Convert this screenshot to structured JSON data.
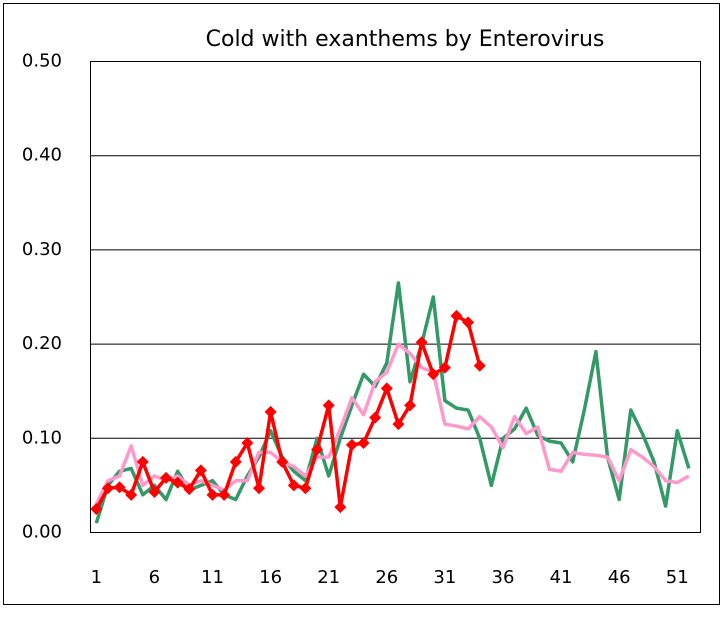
{
  "chart_data": {
    "type": "line",
    "title": "Cold with exanthems by Enterovirus",
    "x": [
      1,
      2,
      3,
      4,
      5,
      6,
      7,
      8,
      9,
      10,
      11,
      12,
      13,
      14,
      15,
      16,
      17,
      18,
      19,
      20,
      21,
      22,
      23,
      24,
      25,
      26,
      27,
      28,
      29,
      30,
      31,
      32,
      33,
      34,
      35,
      36,
      37,
      38,
      39,
      40,
      41,
      42,
      43,
      44,
      45,
      46,
      47,
      48,
      49,
      50,
      51,
      52
    ],
    "series": [
      {
        "color": "#339966",
        "marker": "none",
        "values": [
          0.01,
          0.05,
          0.065,
          0.068,
          0.04,
          0.05,
          0.035,
          0.065,
          0.045,
          0.05,
          0.055,
          0.04,
          0.035,
          0.06,
          0.08,
          0.108,
          0.08,
          0.065,
          0.055,
          0.1,
          0.06,
          0.1,
          0.135,
          0.168,
          0.155,
          0.18,
          0.265,
          0.16,
          0.2,
          0.25,
          0.14,
          0.132,
          0.13,
          0.1,
          0.05,
          0.1,
          0.11,
          0.132,
          0.103,
          0.097,
          0.095,
          0.075,
          0.13,
          0.192,
          0.08,
          0.035,
          0.13,
          0.105,
          0.075,
          0.028,
          0.108,
          0.068
        ]
      },
      {
        "color": "#ff99cc",
        "marker": "none",
        "values": [
          0.03,
          0.055,
          0.06,
          0.092,
          0.05,
          0.06,
          0.055,
          0.06,
          0.05,
          0.055,
          0.05,
          0.045,
          0.055,
          0.055,
          0.085,
          0.085,
          0.075,
          0.07,
          0.06,
          0.08,
          0.08,
          0.11,
          0.143,
          0.125,
          0.16,
          0.17,
          0.2,
          0.19,
          0.175,
          0.17,
          0.115,
          0.113,
          0.11,
          0.123,
          0.112,
          0.09,
          0.123,
          0.105,
          0.112,
          0.067,
          0.065,
          0.085,
          0.083,
          0.082,
          0.08,
          0.055,
          0.088,
          0.08,
          0.07,
          0.055,
          0.053,
          0.06
        ]
      },
      {
        "color": "#ff0000",
        "marker": "diamond",
        "values": [
          0.025,
          0.047,
          0.048,
          0.04,
          0.075,
          0.043,
          0.058,
          0.053,
          0.046,
          0.066,
          0.04,
          0.04,
          0.075,
          0.095,
          0.047,
          0.128,
          0.075,
          0.05,
          0.047,
          0.088,
          0.135,
          0.027,
          0.093,
          0.095,
          0.122,
          0.153,
          0.115,
          0.135,
          0.202,
          0.168,
          0.175,
          0.23,
          0.223,
          0.177,
          null,
          null,
          null,
          null,
          null,
          null,
          null,
          null,
          null,
          null,
          null,
          null,
          null,
          null,
          null,
          null,
          null,
          null
        ]
      }
    ],
    "xlim": [
      0.5,
      53
    ],
    "xticks": [
      1,
      6,
      11,
      16,
      21,
      26,
      31,
      36,
      41,
      46,
      51
    ],
    "ylim": [
      0,
      0.5
    ],
    "yticks": [
      {
        "value": 0,
        "label": "0.00"
      },
      {
        "value": 0.1,
        "label": "0.10"
      },
      {
        "value": 0.2,
        "label": "0.20"
      },
      {
        "value": 0.3,
        "label": "0.30"
      },
      {
        "value": 0.4,
        "label": "0.40"
      },
      {
        "value": 0.5,
        "label": "0.50"
      }
    ],
    "grid": true
  }
}
